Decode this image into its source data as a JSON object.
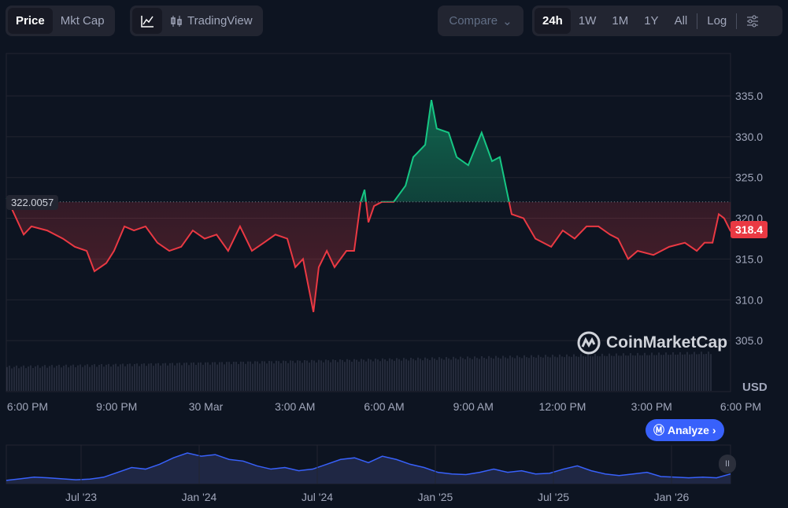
{
  "toolbar": {
    "view_tabs": [
      {
        "label": "Price",
        "active": true
      },
      {
        "label": "Mkt Cap",
        "active": false
      }
    ],
    "chart_types": {
      "line_icon": "line-chart-icon",
      "tradingview_icon": "candlestick-icon",
      "tradingview_label": "TradingView"
    },
    "compare_label": "Compare",
    "ranges": [
      {
        "label": "24h",
        "active": true
      },
      {
        "label": "1W"
      },
      {
        "label": "1M"
      },
      {
        "label": "1Y"
      },
      {
        "label": "All"
      }
    ],
    "log_label": "Log",
    "settings_icon": "sliders-icon"
  },
  "watermark": "CoinMarketCap",
  "analyze_label": "Analyze",
  "colors": {
    "up": "#16c784",
    "down": "#ea3943",
    "accent": "#3861fb",
    "bg": "#0d1421"
  },
  "chart_data": {
    "type": "area",
    "currency": "USD",
    "baseline": 322.0057,
    "baseline_label": "322.0057",
    "current_label": "318.4",
    "ylim": [
      300,
      340
    ],
    "yticks": [
      "335.0",
      "330.0",
      "325.0",
      "320.0",
      "315.0",
      "310.0",
      "305.0"
    ],
    "xticks": [
      "6:00 PM",
      "9:00 PM",
      "30 Mar",
      "3:00 AM",
      "6:00 AM",
      "9:00 AM",
      "12:00 PM",
      "3:00 PM",
      "6:00 PM"
    ],
    "xlabel_hours_from_start": [
      0,
      3,
      6,
      9,
      12,
      15,
      18,
      21,
      24
    ],
    "points_hours_price": [
      [
        -0.7,
        322.5
      ],
      [
        -0.13,
        318
      ],
      [
        0.13,
        319
      ],
      [
        0.66,
        318.5
      ],
      [
        1.19,
        317.5
      ],
      [
        1.59,
        316.5
      ],
      [
        1.99,
        316
      ],
      [
        2.25,
        313.5
      ],
      [
        2.65,
        314.5
      ],
      [
        2.91,
        316
      ],
      [
        3.26,
        319
      ],
      [
        3.58,
        318.5
      ],
      [
        3.97,
        319
      ],
      [
        4.37,
        317
      ],
      [
        4.77,
        316
      ],
      [
        5.17,
        316.5
      ],
      [
        5.56,
        318.5
      ],
      [
        5.96,
        317.5
      ],
      [
        6.36,
        318
      ],
      [
        6.75,
        316
      ],
      [
        7.15,
        319
      ],
      [
        7.55,
        316
      ],
      [
        7.95,
        317
      ],
      [
        8.34,
        318
      ],
      [
        8.74,
        317.5
      ],
      [
        9.01,
        314
      ],
      [
        9.27,
        315
      ],
      [
        9.54,
        310
      ],
      [
        9.62,
        308.5
      ],
      [
        9.8,
        314
      ],
      [
        10.07,
        316
      ],
      [
        10.33,
        314
      ],
      [
        10.73,
        316
      ],
      [
        10.99,
        316
      ],
      [
        11.21,
        322
      ],
      [
        11.34,
        323.5
      ],
      [
        11.47,
        319.5
      ],
      [
        11.66,
        321.5
      ],
      [
        11.92,
        322
      ],
      [
        12.32,
        322
      ],
      [
        12.72,
        324
      ],
      [
        12.98,
        327.5
      ],
      [
        13.38,
        329
      ],
      [
        13.59,
        334.5
      ],
      [
        13.77,
        331
      ],
      [
        14.17,
        330.5
      ],
      [
        14.44,
        327.5
      ],
      [
        14.83,
        326.5
      ],
      [
        15.28,
        330.5
      ],
      [
        15.63,
        327
      ],
      [
        15.89,
        327.5
      ],
      [
        16.29,
        320.5
      ],
      [
        16.69,
        320
      ],
      [
        17.09,
        317.5
      ],
      [
        17.62,
        316.5
      ],
      [
        18.01,
        318.5
      ],
      [
        18.41,
        317.5
      ],
      [
        18.81,
        319
      ],
      [
        19.21,
        319
      ],
      [
        19.6,
        318
      ],
      [
        19.87,
        317.5
      ],
      [
        20.21,
        315
      ],
      [
        20.53,
        316
      ],
      [
        21.06,
        315.5
      ],
      [
        21.59,
        316.5
      ],
      [
        22.12,
        317
      ],
      [
        22.52,
        316
      ],
      [
        22.78,
        317
      ],
      [
        23.05,
        317
      ],
      [
        23.26,
        320.5
      ],
      [
        23.44,
        320
      ],
      [
        23.66,
        318.4
      ]
    ],
    "navigator": {
      "labels": [
        "Jul '23",
        "Jan '24",
        "Jul '24",
        "Jan '25",
        "Jul '25",
        "Jan '26"
      ],
      "values": [
        0.1,
        0.15,
        0.2,
        0.18,
        0.15,
        0.12,
        0.14,
        0.2,
        0.35,
        0.5,
        0.45,
        0.6,
        0.8,
        0.95,
        0.85,
        0.9,
        0.75,
        0.7,
        0.55,
        0.45,
        0.5,
        0.4,
        0.45,
        0.6,
        0.75,
        0.8,
        0.65,
        0.85,
        0.75,
        0.6,
        0.5,
        0.35,
        0.3,
        0.28,
        0.35,
        0.45,
        0.35,
        0.4,
        0.3,
        0.32,
        0.45,
        0.55,
        0.4,
        0.3,
        0.25,
        0.3,
        0.35,
        0.22,
        0.2,
        0.18,
        0.2,
        0.18,
        0.3
      ]
    }
  }
}
